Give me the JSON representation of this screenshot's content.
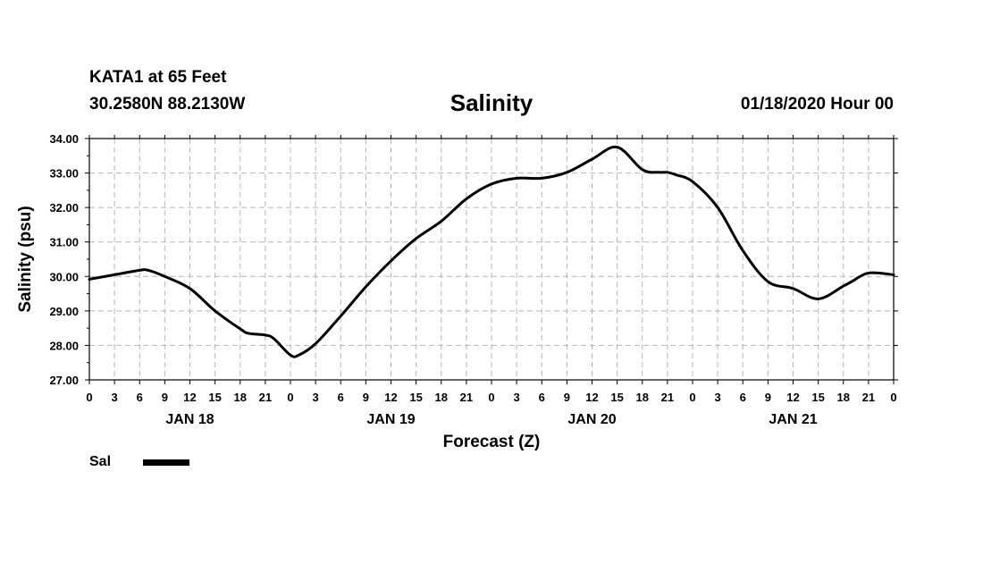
{
  "header": {
    "station": "KATA1 at 65 Feet",
    "coords": "30.2580N 88.2130W",
    "title": "Salinity",
    "timestamp": "01/18/2020 Hour 00"
  },
  "chart_data": {
    "type": "line",
    "title": "Salinity",
    "xlabel": "Forecast (Z)",
    "ylabel": "Salinity (psu)",
    "ylim": [
      27,
      34
    ],
    "yticks": [
      "27.00",
      "28.00",
      "29.00",
      "30.00",
      "31.00",
      "32.00",
      "33.00",
      "34.00"
    ],
    "xlim": [
      0,
      96
    ],
    "xtick_labels": [
      "0",
      "3",
      "6",
      "9",
      "12",
      "15",
      "18",
      "21",
      "0",
      "3",
      "6",
      "9",
      "12",
      "15",
      "18",
      "21",
      "0",
      "3",
      "6",
      "9",
      "12",
      "15",
      "18",
      "21",
      "0",
      "3",
      "6",
      "9",
      "12",
      "15",
      "18",
      "21",
      "0"
    ],
    "day_labels": [
      "JAN 18",
      "JAN 19",
      "JAN 20",
      "JAN 21"
    ],
    "grid": true,
    "legend_position": "bottom-left",
    "series": [
      {
        "name": "Sal",
        "color": "#000000",
        "x": [
          0,
          3,
          6,
          7,
          9,
          12,
          15,
          18,
          19,
          21,
          22,
          24,
          25,
          27,
          30,
          33,
          36,
          39,
          42,
          45,
          48,
          51,
          54,
          57,
          60,
          63,
          66,
          68,
          69,
          70,
          72,
          75,
          78,
          81,
          84,
          87,
          90,
          91,
          93,
          96
        ],
        "y": [
          29.92,
          30.05,
          30.18,
          30.18,
          30.0,
          29.65,
          29.0,
          28.48,
          28.35,
          28.3,
          28.2,
          27.72,
          27.72,
          28.05,
          28.85,
          29.7,
          30.45,
          31.1,
          31.6,
          32.25,
          32.68,
          32.85,
          32.85,
          33.02,
          33.4,
          33.75,
          33.1,
          33.02,
          33.02,
          32.95,
          32.75,
          32.0,
          30.75,
          29.85,
          29.65,
          29.35,
          29.72,
          29.85,
          30.1,
          30.05
        ]
      }
    ]
  },
  "legend": {
    "label": "Sal",
    "color": "#000000"
  }
}
